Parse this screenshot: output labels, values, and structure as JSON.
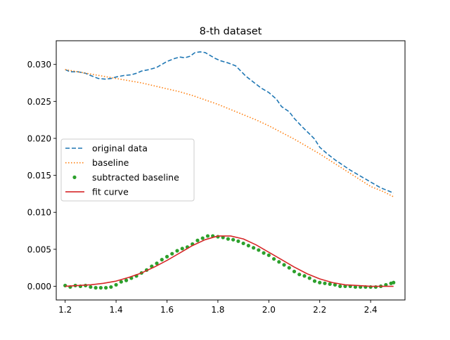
{
  "chart_data": {
    "type": "line",
    "title": "8-th dataset",
    "xlabel": "",
    "ylabel": "",
    "xlim": [
      1.165,
      2.535
    ],
    "ylim": [
      -0.00185,
      0.0332
    ],
    "grid": false,
    "legend_placement": "center-left",
    "x_ticks": [
      1.2,
      1.4,
      1.6,
      1.8,
      2.0,
      2.2,
      2.4
    ],
    "x_tick_labels": [
      "1.2",
      "1.4",
      "1.6",
      "1.8",
      "2.0",
      "2.2",
      "2.4"
    ],
    "y_ticks": [
      0.0,
      0.005,
      0.01,
      0.015,
      0.02,
      0.025,
      0.03
    ],
    "y_tick_labels": [
      "0.000",
      "0.005",
      "0.010",
      "0.015",
      "0.020",
      "0.025",
      "0.030"
    ],
    "series": [
      {
        "name": "original data",
        "style": "dashed",
        "color": "#1f77b4",
        "x": [
          1.2,
          1.22,
          1.25,
          1.28,
          1.3,
          1.33,
          1.36,
          1.38,
          1.4,
          1.43,
          1.46,
          1.48,
          1.5,
          1.53,
          1.56,
          1.58,
          1.6,
          1.63,
          1.65,
          1.67,
          1.69,
          1.71,
          1.73,
          1.75,
          1.77,
          1.79,
          1.81,
          1.84,
          1.87,
          1.89,
          1.91,
          1.94,
          1.97,
          2.0,
          2.03,
          2.05,
          2.08,
          2.1,
          2.13,
          2.16,
          2.18,
          2.2,
          2.23,
          2.26,
          2.29,
          2.32,
          2.35,
          2.38,
          2.41,
          2.44,
          2.47,
          2.49
        ],
        "y": [
          0.0293,
          0.029,
          0.029,
          0.0288,
          0.0285,
          0.0281,
          0.028,
          0.0281,
          0.0283,
          0.0285,
          0.0286,
          0.0288,
          0.0291,
          0.0293,
          0.0296,
          0.03,
          0.0304,
          0.0308,
          0.031,
          0.0309,
          0.0311,
          0.0316,
          0.0317,
          0.0316,
          0.0312,
          0.0308,
          0.0305,
          0.0302,
          0.0298,
          0.0291,
          0.0284,
          0.0276,
          0.0268,
          0.0262,
          0.0253,
          0.0243,
          0.0236,
          0.0227,
          0.0216,
          0.0206,
          0.0199,
          0.0188,
          0.0179,
          0.0171,
          0.0164,
          0.0157,
          0.0151,
          0.0145,
          0.0139,
          0.0133,
          0.0129,
          0.0126
        ]
      },
      {
        "name": "baseline",
        "style": "dotted",
        "color": "#ff7f0e",
        "x": [
          1.2,
          1.25,
          1.3,
          1.35,
          1.4,
          1.45,
          1.5,
          1.55,
          1.6,
          1.65,
          1.7,
          1.75,
          1.8,
          1.85,
          1.9,
          1.95,
          2.0,
          2.05,
          2.1,
          2.15,
          2.2,
          2.25,
          2.3,
          2.35,
          2.4,
          2.45,
          2.49
        ],
        "y": [
          0.0293,
          0.029,
          0.0287,
          0.0284,
          0.0281,
          0.0278,
          0.0275,
          0.0271,
          0.0267,
          0.0263,
          0.0258,
          0.0252,
          0.0246,
          0.0239,
          0.0232,
          0.0225,
          0.0217,
          0.0208,
          0.0199,
          0.0189,
          0.0179,
          0.0168,
          0.0157,
          0.0146,
          0.0135,
          0.0128,
          0.0121
        ]
      },
      {
        "name": "subtracted baseline",
        "style": "points",
        "color": "#2ca02c",
        "x": [
          1.2,
          1.22,
          1.24,
          1.26,
          1.28,
          1.3,
          1.32,
          1.34,
          1.36,
          1.38,
          1.4,
          1.42,
          1.44,
          1.46,
          1.48,
          1.5,
          1.52,
          1.54,
          1.56,
          1.58,
          1.6,
          1.62,
          1.64,
          1.66,
          1.68,
          1.7,
          1.72,
          1.74,
          1.76,
          1.78,
          1.8,
          1.82,
          1.84,
          1.86,
          1.88,
          1.9,
          1.92,
          1.94,
          1.96,
          1.98,
          2.0,
          2.02,
          2.04,
          2.06,
          2.08,
          2.1,
          2.12,
          2.14,
          2.16,
          2.18,
          2.2,
          2.22,
          2.24,
          2.26,
          2.28,
          2.3,
          2.32,
          2.34,
          2.36,
          2.38,
          2.4,
          2.42,
          2.44,
          2.46,
          2.48,
          2.49
        ],
        "y": [
          0.0001,
          -0.0001,
          0.0001,
          0.0,
          0.0001,
          -0.0001,
          -0.0002,
          -0.0002,
          -0.0002,
          -0.0001,
          0.0002,
          0.0006,
          0.0008,
          0.0011,
          0.0014,
          0.0018,
          0.0022,
          0.0027,
          0.0031,
          0.0036,
          0.004,
          0.0044,
          0.0048,
          0.0051,
          0.0053,
          0.0057,
          0.0062,
          0.0065,
          0.0068,
          0.0068,
          0.0067,
          0.0066,
          0.0064,
          0.0063,
          0.0061,
          0.0058,
          0.0055,
          0.0052,
          0.0049,
          0.0045,
          0.0042,
          0.0037,
          0.0033,
          0.0029,
          0.0025,
          0.002,
          0.0016,
          0.0014,
          0.0011,
          0.0007,
          0.0005,
          0.0004,
          0.0003,
          0.0002,
          0.0,
          0.0,
          0.0,
          -0.0001,
          -0.0001,
          -0.0001,
          -0.0001,
          -0.0001,
          0.0,
          0.0002,
          0.0004,
          0.0005
        ]
      },
      {
        "name": "fit curve",
        "style": "solid",
        "color": "#d62728",
        "x": [
          1.2,
          1.25,
          1.3,
          1.35,
          1.4,
          1.45,
          1.5,
          1.55,
          1.6,
          1.65,
          1.7,
          1.75,
          1.8,
          1.85,
          1.9,
          1.95,
          2.0,
          2.05,
          2.1,
          2.15,
          2.2,
          2.25,
          2.3,
          2.35,
          2.4,
          2.45,
          2.49
        ],
        "y": [
          0.0,
          0.0001,
          0.0002,
          0.0004,
          0.0007,
          0.0012,
          0.0018,
          0.0026,
          0.0035,
          0.0045,
          0.0055,
          0.0063,
          0.0068,
          0.0068,
          0.0064,
          0.0056,
          0.0046,
          0.0036,
          0.0026,
          0.0017,
          0.001,
          0.0005,
          0.0002,
          0.0001,
          0.0,
          0.0,
          0.0
        ]
      }
    ]
  }
}
